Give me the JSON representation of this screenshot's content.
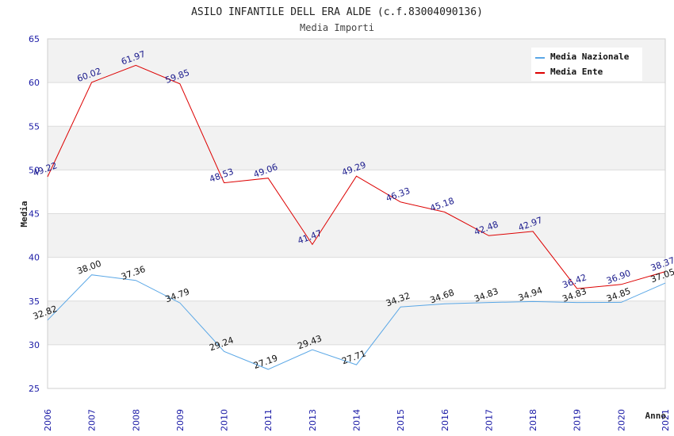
{
  "chart_data": {
    "type": "line",
    "title": "ASILO INFANTILE DELL ERA ALDE (c.f.83004090136)",
    "subtitle": "Media Importi",
    "ylabel": "Media",
    "xlabel": "Anno",
    "ylim": [
      25,
      65
    ],
    "yticks": [
      25,
      30,
      35,
      40,
      45,
      50,
      55,
      60,
      65
    ],
    "categories": [
      "2006",
      "2007",
      "2008",
      "2009",
      "2010",
      "2011",
      "2013",
      "2014",
      "2015",
      "2016",
      "2017",
      "2018",
      "2019",
      "2020",
      "2021"
    ],
    "series": [
      {
        "name": "Media Nazionale",
        "color": "#5aa7e6",
        "label_color": "#111111",
        "values": [
          32.82,
          38.0,
          37.36,
          34.79,
          29.24,
          27.19,
          29.43,
          27.71,
          34.32,
          34.68,
          34.83,
          34.94,
          34.83,
          34.85,
          37.05
        ]
      },
      {
        "name": "Media Ente",
        "color": "#dd0000",
        "label_color": "#1a1a8c",
        "values": [
          49.22,
          60.02,
          61.97,
          59.85,
          48.53,
          49.06,
          41.47,
          49.29,
          46.33,
          45.18,
          42.48,
          42.97,
          36.42,
          36.9,
          38.37
        ]
      }
    ],
    "grid": true,
    "legend": "top-right"
  }
}
